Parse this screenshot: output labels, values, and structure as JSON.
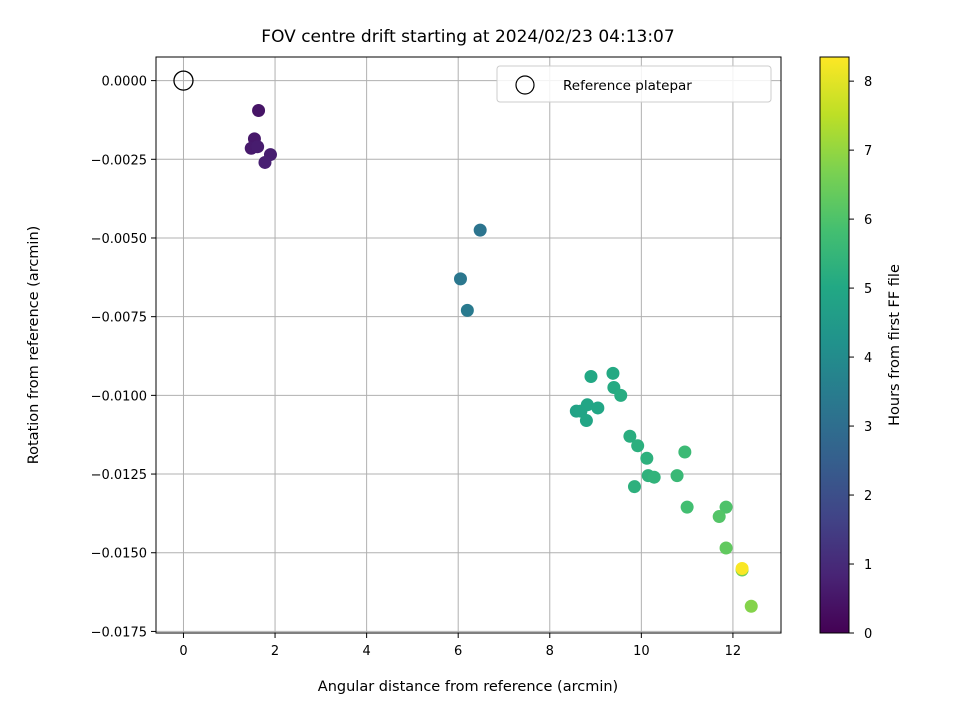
{
  "chart_data": {
    "type": "scatter",
    "title": "FOV centre drift starting at 2024/02/23 04:13:07",
    "xlabel": "Angular distance from reference (arcmin)",
    "ylabel": "Rotation from reference (arcmin)",
    "xlim": [
      -0.6,
      13.05
    ],
    "ylim": [
      -0.01755,
      0.00075
    ],
    "xticks": [
      0,
      2,
      4,
      6,
      8,
      10,
      12
    ],
    "xtick_labels": [
      "0",
      "2",
      "4",
      "6",
      "8",
      "10",
      "12"
    ],
    "yticks": [
      0.0,
      -0.0025,
      -0.005,
      -0.0075,
      -0.01,
      -0.0125,
      -0.015,
      -0.0175
    ],
    "ytick_labels": [
      "0.0000",
      "−0.0025",
      "−0.0050",
      "−0.0075",
      "−0.0100",
      "−0.0125",
      "−0.0150",
      "−0.0175"
    ],
    "grid": true,
    "legend": {
      "placement": "top-right",
      "label": "Reference platepar"
    },
    "reference_point": {
      "x": 0,
      "y": 0
    },
    "colorbar": {
      "label": "Hours from first FF file",
      "colormap": "viridis",
      "range": [
        0,
        8.35
      ],
      "ticks": [
        0,
        1,
        2,
        3,
        4,
        5,
        6,
        7,
        8
      ],
      "tick_labels": [
        "0",
        "1",
        "2",
        "3",
        "4",
        "5",
        "6",
        "7",
        "8"
      ]
    },
    "points": [
      {
        "x": 1.64,
        "y": -0.00095,
        "hours": 0.45
      },
      {
        "x": 1.55,
        "y": -0.00185,
        "hours": 0.55
      },
      {
        "x": 1.48,
        "y": -0.00215,
        "hours": 0.6
      },
      {
        "x": 1.62,
        "y": -0.0021,
        "hours": 0.65
      },
      {
        "x": 1.9,
        "y": -0.00235,
        "hours": 0.7
      },
      {
        "x": 1.78,
        "y": -0.0026,
        "hours": 0.75
      },
      {
        "x": 6.48,
        "y": -0.00475,
        "hours": 3.2
      },
      {
        "x": 6.05,
        "y": -0.0063,
        "hours": 3.3
      },
      {
        "x": 6.2,
        "y": -0.0073,
        "hours": 3.4
      },
      {
        "x": 8.58,
        "y": -0.0105,
        "hours": 4.8
      },
      {
        "x": 8.68,
        "y": -0.0105,
        "hours": 4.85
      },
      {
        "x": 8.82,
        "y": -0.0103,
        "hours": 4.9
      },
      {
        "x": 8.8,
        "y": -0.0108,
        "hours": 4.9
      },
      {
        "x": 9.05,
        "y": -0.0104,
        "hours": 4.95
      },
      {
        "x": 8.9,
        "y": -0.0094,
        "hours": 5.0
      },
      {
        "x": 9.38,
        "y": -0.0093,
        "hours": 5.05
      },
      {
        "x": 9.4,
        "y": -0.00975,
        "hours": 5.1
      },
      {
        "x": 9.55,
        "y": -0.01,
        "hours": 5.15
      },
      {
        "x": 9.75,
        "y": -0.0113,
        "hours": 5.2
      },
      {
        "x": 9.92,
        "y": -0.0116,
        "hours": 5.25
      },
      {
        "x": 10.12,
        "y": -0.012,
        "hours": 5.3
      },
      {
        "x": 9.85,
        "y": -0.0129,
        "hours": 5.3
      },
      {
        "x": 10.15,
        "y": -0.01255,
        "hours": 5.35
      },
      {
        "x": 10.28,
        "y": -0.0126,
        "hours": 5.4
      },
      {
        "x": 10.78,
        "y": -0.01255,
        "hours": 5.6
      },
      {
        "x": 10.95,
        "y": -0.0118,
        "hours": 5.65
      },
      {
        "x": 11.0,
        "y": -0.01355,
        "hours": 5.8
      },
      {
        "x": 11.85,
        "y": -0.01355,
        "hours": 6.0
      },
      {
        "x": 11.7,
        "y": -0.01385,
        "hours": 6.1
      },
      {
        "x": 11.85,
        "y": -0.01485,
        "hours": 6.3
      },
      {
        "x": 12.2,
        "y": -0.01555,
        "hours": 6.6
      },
      {
        "x": 12.4,
        "y": -0.0167,
        "hours": 6.8
      },
      {
        "x": 12.2,
        "y": -0.0155,
        "hours": 8.3
      }
    ]
  }
}
